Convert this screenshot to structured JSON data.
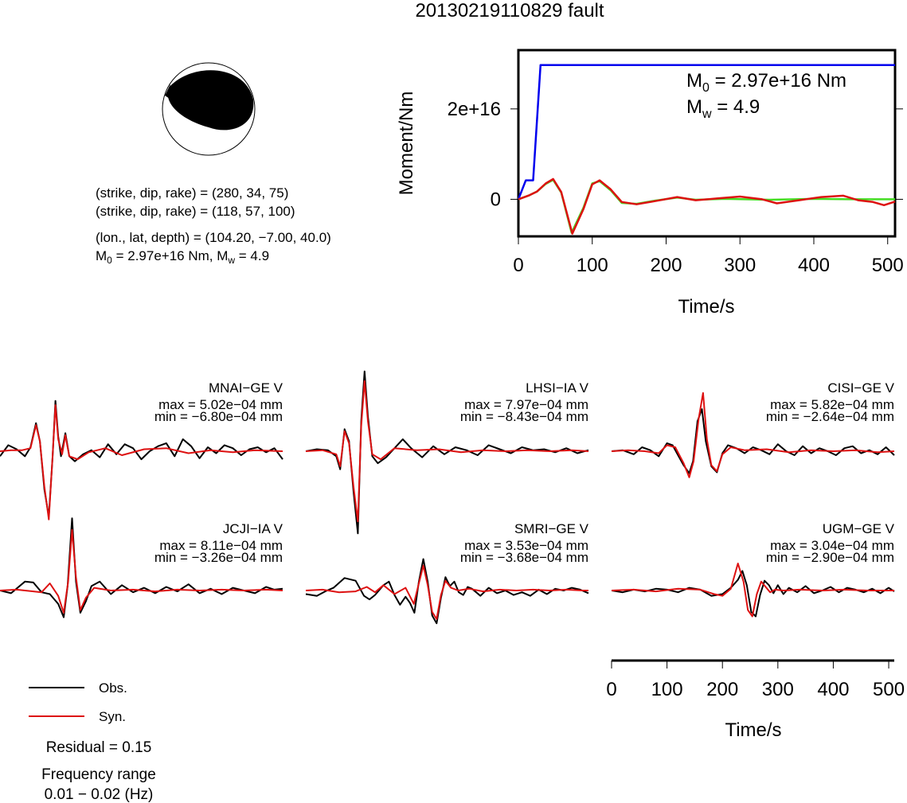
{
  "title": "20130219110829 fault",
  "beachball": {
    "nodal_plane_1": "(strike, dip, rake) = (280, 34, 75)",
    "nodal_plane_2": "(strike, dip, rake) = (118, 57, 100)",
    "location": "(lon., lat, depth) = (104.20, −7.00, 40.0)",
    "moment_prefix": "M",
    "moment_sub": "0",
    "moment_value": " = 2.97e+16 Nm, M",
    "mw_sub": "w",
    "mw_value": " = 4.9"
  },
  "legend": {
    "obs_label": "Obs.",
    "syn_label": "Syn.",
    "residual": "Residual = 0.15",
    "freq_title": "Frequency range",
    "freq_value": "0.01 − 0.02 (Hz)",
    "obs_color": "#000000",
    "syn_color": "#dd1111"
  },
  "chart_data": [
    {
      "type": "line",
      "title": "",
      "xlabel": "Time/s",
      "ylabel": "Moment/Nm",
      "xlim": [
        0,
        510
      ],
      "ylim": [
        -8200000000000000.0,
        3.3e+16
      ],
      "xticks": [
        "0",
        "100",
        "200",
        "300",
        "400",
        "500"
      ],
      "yticks": [
        "0",
        "2e+16"
      ],
      "annotation": {
        "m0_prefix": "M",
        "m0_sub": "0",
        "m0_value": " = 2.97e+16 Nm",
        "mw_prefix": "M",
        "mw_sub": "w",
        "mw_value": " = 4.9"
      },
      "series": [
        {
          "color": "#0000ee",
          "x": [
            0,
            10,
            20,
            30,
            510
          ],
          "y": [
            0,
            4200000000000000.0,
            4200000000000000.0,
            2.97e+16,
            2.97e+16
          ]
        },
        {
          "color": "#44dd22",
          "x": [
            0,
            15,
            25,
            37,
            47,
            58,
            72,
            88,
            100,
            110,
            125,
            140,
            160,
            185,
            215,
            240,
            280,
            340,
            400,
            450,
            510
          ],
          "y": [
            0,
            900000000000000.0,
            1700000000000000.0,
            3400000000000000.0,
            4300000000000000.0,
            1500000000000000.0,
            -7400000000000000.0,
            -1900000000000000.0,
            3500000000000000.0,
            4000000000000000.0,
            2000000000000000.0,
            -800000000000000.0,
            -1000000000000000.0,
            -300000000000000.0,
            400000000000000.0,
            -100000000000000.0,
            100000000000000.0,
            -100000000000000.0,
            100000000000000.0,
            0,
            0
          ]
        },
        {
          "color": "#dd1111",
          "x": [
            0,
            15,
            25,
            37,
            47,
            58,
            73,
            88,
            100,
            110,
            125,
            140,
            160,
            185,
            215,
            240,
            270,
            300,
            330,
            350,
            380,
            410,
            440,
            460,
            480,
            495,
            510
          ],
          "y": [
            0,
            900000000000000.0,
            1700000000000000.0,
            3500000000000000.0,
            4500000000000000.0,
            1600000000000000.0,
            -7600000000000000.0,
            -2200000000000000.0,
            3300000000000000.0,
            4200000000000000.0,
            2200000000000000.0,
            -600000000000000.0,
            -1100000000000000.0,
            -400000000000000.0,
            500000000000000.0,
            -200000000000000.0,
            200000000000000.0,
            600000000000000.0,
            0.0,
            -900000000000000.0,
            -200000000000000.0,
            500000000000000.0,
            800000000000000.0,
            -200000000000000.0,
            -600000000000000.0,
            -1300000000000000.0,
            -500000000000000.0
          ]
        }
      ]
    },
    {
      "type": "line",
      "title": "",
      "xlabel": "Time/s",
      "xlim": [
        0,
        510
      ],
      "xticks": [
        "0",
        "100",
        "200",
        "300",
        "400",
        "500"
      ],
      "stations": [
        {
          "name": "MNAI−GE V",
          "max": "max = 5.02e−04 mm",
          "min": "min = −6.80e−04 mm",
          "obs_x": [
            0,
            15,
            30,
            45,
            55,
            65,
            72,
            80,
            88,
            95,
            100,
            105,
            110,
            118,
            125,
            135,
            150,
            165,
            180,
            195,
            210,
            225,
            240,
            255,
            270,
            285,
            300,
            315,
            330,
            345,
            360,
            375,
            390,
            405,
            420,
            435,
            450,
            465,
            480,
            495,
            510
          ],
          "obs_y": [
            -0.5,
            0.6,
            0.2,
            -0.5,
            0.4,
            2.8,
            1.0,
            -3.8,
            -6.5,
            -0.5,
            5.02,
            1.5,
            -0.5,
            1.8,
            -0.5,
            -1.0,
            -0.3,
            0.1,
            -0.6,
            0.7,
            -0.3,
            0.7,
            0.3,
            -0.8,
            0.0,
            0.5,
            0.8,
            -0.5,
            1.2,
            0.5,
            -0.7,
            0.4,
            -0.2,
            0.6,
            0.3,
            -0.4,
            0.2,
            0.4,
            -0.1,
            0.3,
            -0.8
          ],
          "syn_x": [
            0,
            20,
            40,
            55,
            65,
            72,
            80,
            88,
            95,
            100,
            105,
            112,
            118,
            125,
            140,
            160,
            190,
            220,
            260,
            300,
            340,
            380,
            420,
            460,
            510
          ],
          "syn_y": [
            0,
            0.1,
            0.1,
            0.3,
            2.6,
            1.0,
            -3.5,
            -6.8,
            -0.4,
            4.6,
            1.2,
            -0.3,
            1.6,
            -0.5,
            -0.8,
            -0.1,
            0.3,
            -0.4,
            0.2,
            0.3,
            -0.2,
            0.1,
            -0.1,
            0.1,
            0
          ]
        },
        {
          "name": "LHSI−IA V",
          "max": "max = 7.97e−04 mm",
          "min": "min = −8.43e−04 mm",
          "obs_x": [
            0,
            20,
            40,
            55,
            62,
            70,
            78,
            86,
            94,
            100,
            106,
            112,
            120,
            130,
            145,
            160,
            175,
            190,
            210,
            230,
            250,
            270,
            290,
            310,
            330,
            350,
            370,
            390,
            410,
            430,
            450,
            470,
            490,
            510
          ],
          "obs_y": [
            0,
            0.2,
            0.1,
            -0.5,
            -1.8,
            2.2,
            1.0,
            -4.0,
            -8.2,
            3.0,
            7.97,
            3.5,
            -0.5,
            -1.2,
            -0.6,
            0.3,
            1.2,
            0.3,
            -0.6,
            0.5,
            -0.3,
            0.4,
            0.1,
            -0.4,
            0.6,
            0.2,
            -0.2,
            0.4,
            0.1,
            0.2,
            -0.1,
            0.3,
            -0.2,
            0.1
          ],
          "syn_x": [
            0,
            30,
            55,
            62,
            70,
            78,
            86,
            94,
            100,
            106,
            112,
            120,
            135,
            160,
            200,
            240,
            280,
            320,
            360,
            400,
            440,
            480,
            510
          ],
          "syn_y": [
            0,
            0.1,
            -0.3,
            -1.5,
            2.0,
            0.8,
            -3.5,
            -7.0,
            2.5,
            7.0,
            3.0,
            -0.3,
            -0.8,
            0.3,
            0.1,
            0.2,
            -0.1,
            0.1,
            0.0,
            0.1,
            0.0,
            0.1,
            0
          ]
        },
        {
          "name": "CISI−GE V",
          "max": "max = 5.82e−04 mm",
          "min": "min = −2.64e−04 mm",
          "obs_x": [
            0,
            20,
            40,
            55,
            70,
            85,
            100,
            110,
            120,
            130,
            140,
            147,
            155,
            163,
            170,
            180,
            190,
            200,
            210,
            225,
            240,
            255,
            270,
            285,
            300,
            315,
            330,
            345,
            360,
            375,
            390,
            405,
            420,
            435,
            450,
            465,
            480,
            495,
            510
          ],
          "obs_y": [
            0,
            0.1,
            -0.3,
            0.4,
            0.1,
            -0.5,
            0.8,
            0.6,
            -0.4,
            -1.4,
            -2.2,
            -1.0,
            3.0,
            4.2,
            1.0,
            -1.5,
            -2.1,
            -0.2,
            0.6,
            0.3,
            -0.2,
            0.4,
            0.1,
            -0.3,
            0.7,
            0.0,
            -0.4,
            0.5,
            -0.2,
            0.3,
            0.0,
            -0.4,
            0.3,
            0.5,
            -0.2,
            0.1,
            -0.3,
            0.4,
            -0.4
          ],
          "syn_x": [
            0,
            30,
            60,
            85,
            100,
            115,
            130,
            140,
            148,
            157,
            165,
            172,
            180,
            190,
            200,
            215,
            240,
            280,
            320,
            360,
            400,
            440,
            480,
            510
          ],
          "syn_y": [
            0,
            0.1,
            0.0,
            -0.2,
            0.6,
            0.4,
            -1.2,
            -2.6,
            -1.0,
            3.2,
            5.82,
            1.2,
            -1.4,
            -2.0,
            -0.3,
            0.4,
            0.1,
            0.2,
            -0.1,
            0.1,
            0.0,
            0.1,
            -0.1,
            0
          ]
        },
        {
          "name": "JCJI−IA V",
          "max": "max = 8.11e−04 mm",
          "min": "min = −3.26e−04 mm",
          "obs_x": [
            0,
            20,
            45,
            60,
            75,
            90,
            105,
            115,
            122,
            130,
            137,
            145,
            155,
            165,
            180,
            200,
            220,
            240,
            260,
            280,
            300,
            320,
            340,
            360,
            380,
            400,
            420,
            440,
            460,
            480,
            495,
            510
          ],
          "obs_y": [
            0,
            -0.3,
            1.0,
            0.9,
            -0.2,
            -0.4,
            -1.5,
            -3.0,
            0.5,
            8.11,
            1.0,
            -2.5,
            -1.2,
            0.5,
            1.0,
            -0.4,
            0.6,
            -0.2,
            0.3,
            -0.3,
            0.4,
            -0.1,
            0.7,
            -0.3,
            0.2,
            -0.4,
            0.3,
            0.0,
            -0.3,
            0.4,
            0.1,
            0.2
          ],
          "syn_x": [
            0,
            30,
            60,
            75,
            90,
            105,
            115,
            123,
            130,
            137,
            145,
            155,
            170,
            200,
            240,
            280,
            320,
            360,
            400,
            440,
            480,
            510
          ],
          "syn_y": [
            0,
            0.1,
            -0.1,
            -0.2,
            0.8,
            -0.6,
            -2.5,
            1.0,
            6.8,
            1.5,
            -2.2,
            -0.8,
            0.3,
            0.0,
            0.1,
            -0.1,
            0.1,
            0.0,
            0.1,
            0.0,
            0.1,
            0
          ]
        },
        {
          "name": "SMRI−GE V",
          "max": "max = 3.53e−04 mm",
          "min": "min = −3.68e−04 mm",
          "obs_x": [
            0,
            20,
            35,
            50,
            70,
            90,
            105,
            115,
            125,
            140,
            150,
            160,
            170,
            180,
            188,
            196,
            204,
            212,
            220,
            228,
            236,
            244,
            252,
            260,
            268,
            276,
            284,
            292,
            300,
            315,
            330,
            345,
            360,
            375,
            390,
            405,
            420,
            435,
            450,
            465,
            480,
            495,
            510
          ],
          "obs_y": [
            -0.4,
            -0.6,
            -0.1,
            0.3,
            1.4,
            1.1,
            -0.6,
            -1.0,
            -0.5,
            0.6,
            1.0,
            -0.5,
            -1.6,
            -0.7,
            -1.4,
            -2.5,
            1.0,
            3.53,
            1.0,
            -2.8,
            -3.68,
            -0.8,
            1.5,
            0.5,
            1.0,
            -0.2,
            -0.5,
            0.4,
            0.2,
            -0.6,
            0.3,
            -0.3,
            0.0,
            -0.5,
            -0.2,
            -0.6,
            0.1,
            -0.4,
            0.2,
            0.0,
            0.3,
            0.1,
            -0.3
          ],
          "syn_x": [
            0,
            30,
            60,
            90,
            110,
            125,
            140,
            160,
            180,
            195,
            204,
            212,
            220,
            228,
            236,
            244,
            252,
            262,
            275,
            295,
            320,
            350,
            380,
            410,
            440,
            470,
            500,
            510
          ],
          "syn_y": [
            0,
            0.1,
            -0.2,
            -0.1,
            0.4,
            -0.2,
            0.6,
            -0.4,
            0.3,
            -1.5,
            0.8,
            2.8,
            0.6,
            -2.4,
            -3.2,
            -0.5,
            1.1,
            0.3,
            0.0,
            0.2,
            -0.1,
            0.1,
            0.0,
            0.1,
            0.0,
            0.1,
            0.0,
            0
          ]
        },
        {
          "name": "UGM−GE V",
          "max": "max = 3.04e−04 mm",
          "min": "min = −2.90e−04 mm",
          "obs_x": [
            0,
            20,
            40,
            60,
            80,
            100,
            120,
            140,
            160,
            180,
            200,
            215,
            228,
            236,
            244,
            252,
            260,
            268,
            276,
            284,
            292,
            300,
            310,
            320,
            335,
            350,
            365,
            380,
            395,
            410,
            425,
            440,
            455,
            470,
            485,
            500,
            510
          ],
          "obs_y": [
            0,
            -0.2,
            0.1,
            -0.1,
            0.2,
            0.1,
            -0.2,
            0.3,
            0.1,
            -0.6,
            -0.4,
            0.3,
            1.2,
            2.2,
            0.6,
            -2.4,
            -2.9,
            -0.5,
            1.1,
            0.6,
            -0.3,
            0.6,
            -0.4,
            0.3,
            -0.2,
            0.5,
            -0.3,
            0.0,
            0.4,
            -0.2,
            0.3,
            0.1,
            -0.2,
            0.2,
            -0.3,
            0.3,
            -0.1
          ],
          "syn_x": [
            0,
            40,
            80,
            120,
            160,
            185,
            200,
            215,
            228,
            238,
            246,
            254,
            262,
            270,
            278,
            286,
            295,
            310,
            340,
            380,
            420,
            460,
            510
          ],
          "syn_y": [
            0,
            0.1,
            -0.1,
            0.2,
            0.1,
            -0.4,
            -0.6,
            0.2,
            3.04,
            1.0,
            -2.2,
            -2.9,
            -0.4,
            1.0,
            0.4,
            -0.2,
            0.1,
            0.0,
            0.1,
            0.0,
            0.1,
            0.0,
            0
          ]
        }
      ]
    }
  ]
}
